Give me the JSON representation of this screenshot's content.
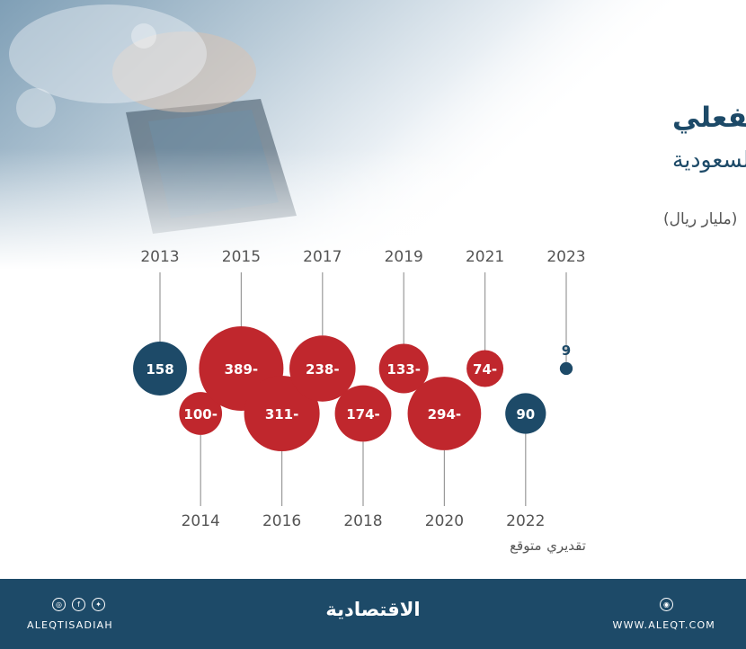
{
  "title": "العجز/ الفائض الفعلي",
  "subtitle": "للميزانية السعودية",
  "unit": "(مليار ريال)",
  "colors": {
    "surplus": "#1d4a68",
    "deficit": "#c0272d",
    "footer": "#1d4a68"
  },
  "chart_data": {
    "type": "bubble",
    "unit": "مليار ريال",
    "points": [
      {
        "year": "2013",
        "value": 158,
        "label": "158",
        "note": ""
      },
      {
        "year": "2014",
        "value": -100,
        "label": "100-",
        "note": ""
      },
      {
        "year": "2015",
        "value": -389,
        "label": "389-",
        "note": ""
      },
      {
        "year": "2016",
        "value": -311,
        "label": "311-",
        "note": ""
      },
      {
        "year": "2017",
        "value": -238,
        "label": "238-",
        "note": ""
      },
      {
        "year": "2018",
        "value": -174,
        "label": "174-",
        "note": ""
      },
      {
        "year": "2019",
        "value": -133,
        "label": "133-",
        "note": ""
      },
      {
        "year": "2020",
        "value": -294,
        "label": "294-",
        "note": ""
      },
      {
        "year": "2021",
        "value": -74,
        "label": "74-",
        "note": ""
      },
      {
        "year": "2022",
        "value": 90,
        "label": "90",
        "note": "متوقع"
      },
      {
        "year": "2023",
        "value": 9,
        "label": "9",
        "note": "تقديري"
      }
    ]
  },
  "footer": {
    "handle": "ALEQTISADIAH",
    "brand": "الاقتصادية",
    "website": "WWW.ALEQT.COM",
    "icons": [
      "instagram-icon",
      "facebook-icon",
      "twitter-icon",
      "globe-icon"
    ]
  }
}
